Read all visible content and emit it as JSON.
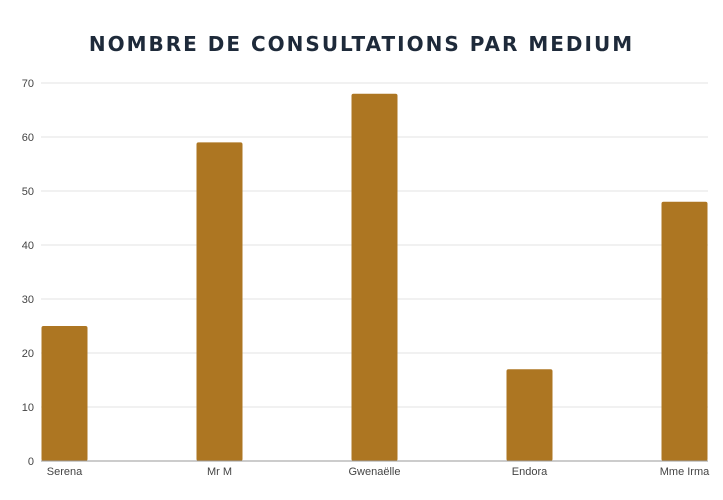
{
  "chart_data": {
    "type": "bar",
    "title": "NOMBRE DE CONSULTATIONS PAR MEDIUM",
    "xlabel": "",
    "ylabel": "",
    "categories": [
      "Serena",
      "Mr M",
      "Gwenaëlle",
      "Endora",
      "Mme Irma"
    ],
    "values": [
      25,
      59,
      68,
      17,
      48
    ],
    "ylim": [
      0,
      70
    ],
    "yticks": [
      0,
      10,
      20,
      30,
      40,
      50,
      60,
      70
    ],
    "grid": true,
    "legend": "none",
    "bar_color": "#ad7622"
  }
}
